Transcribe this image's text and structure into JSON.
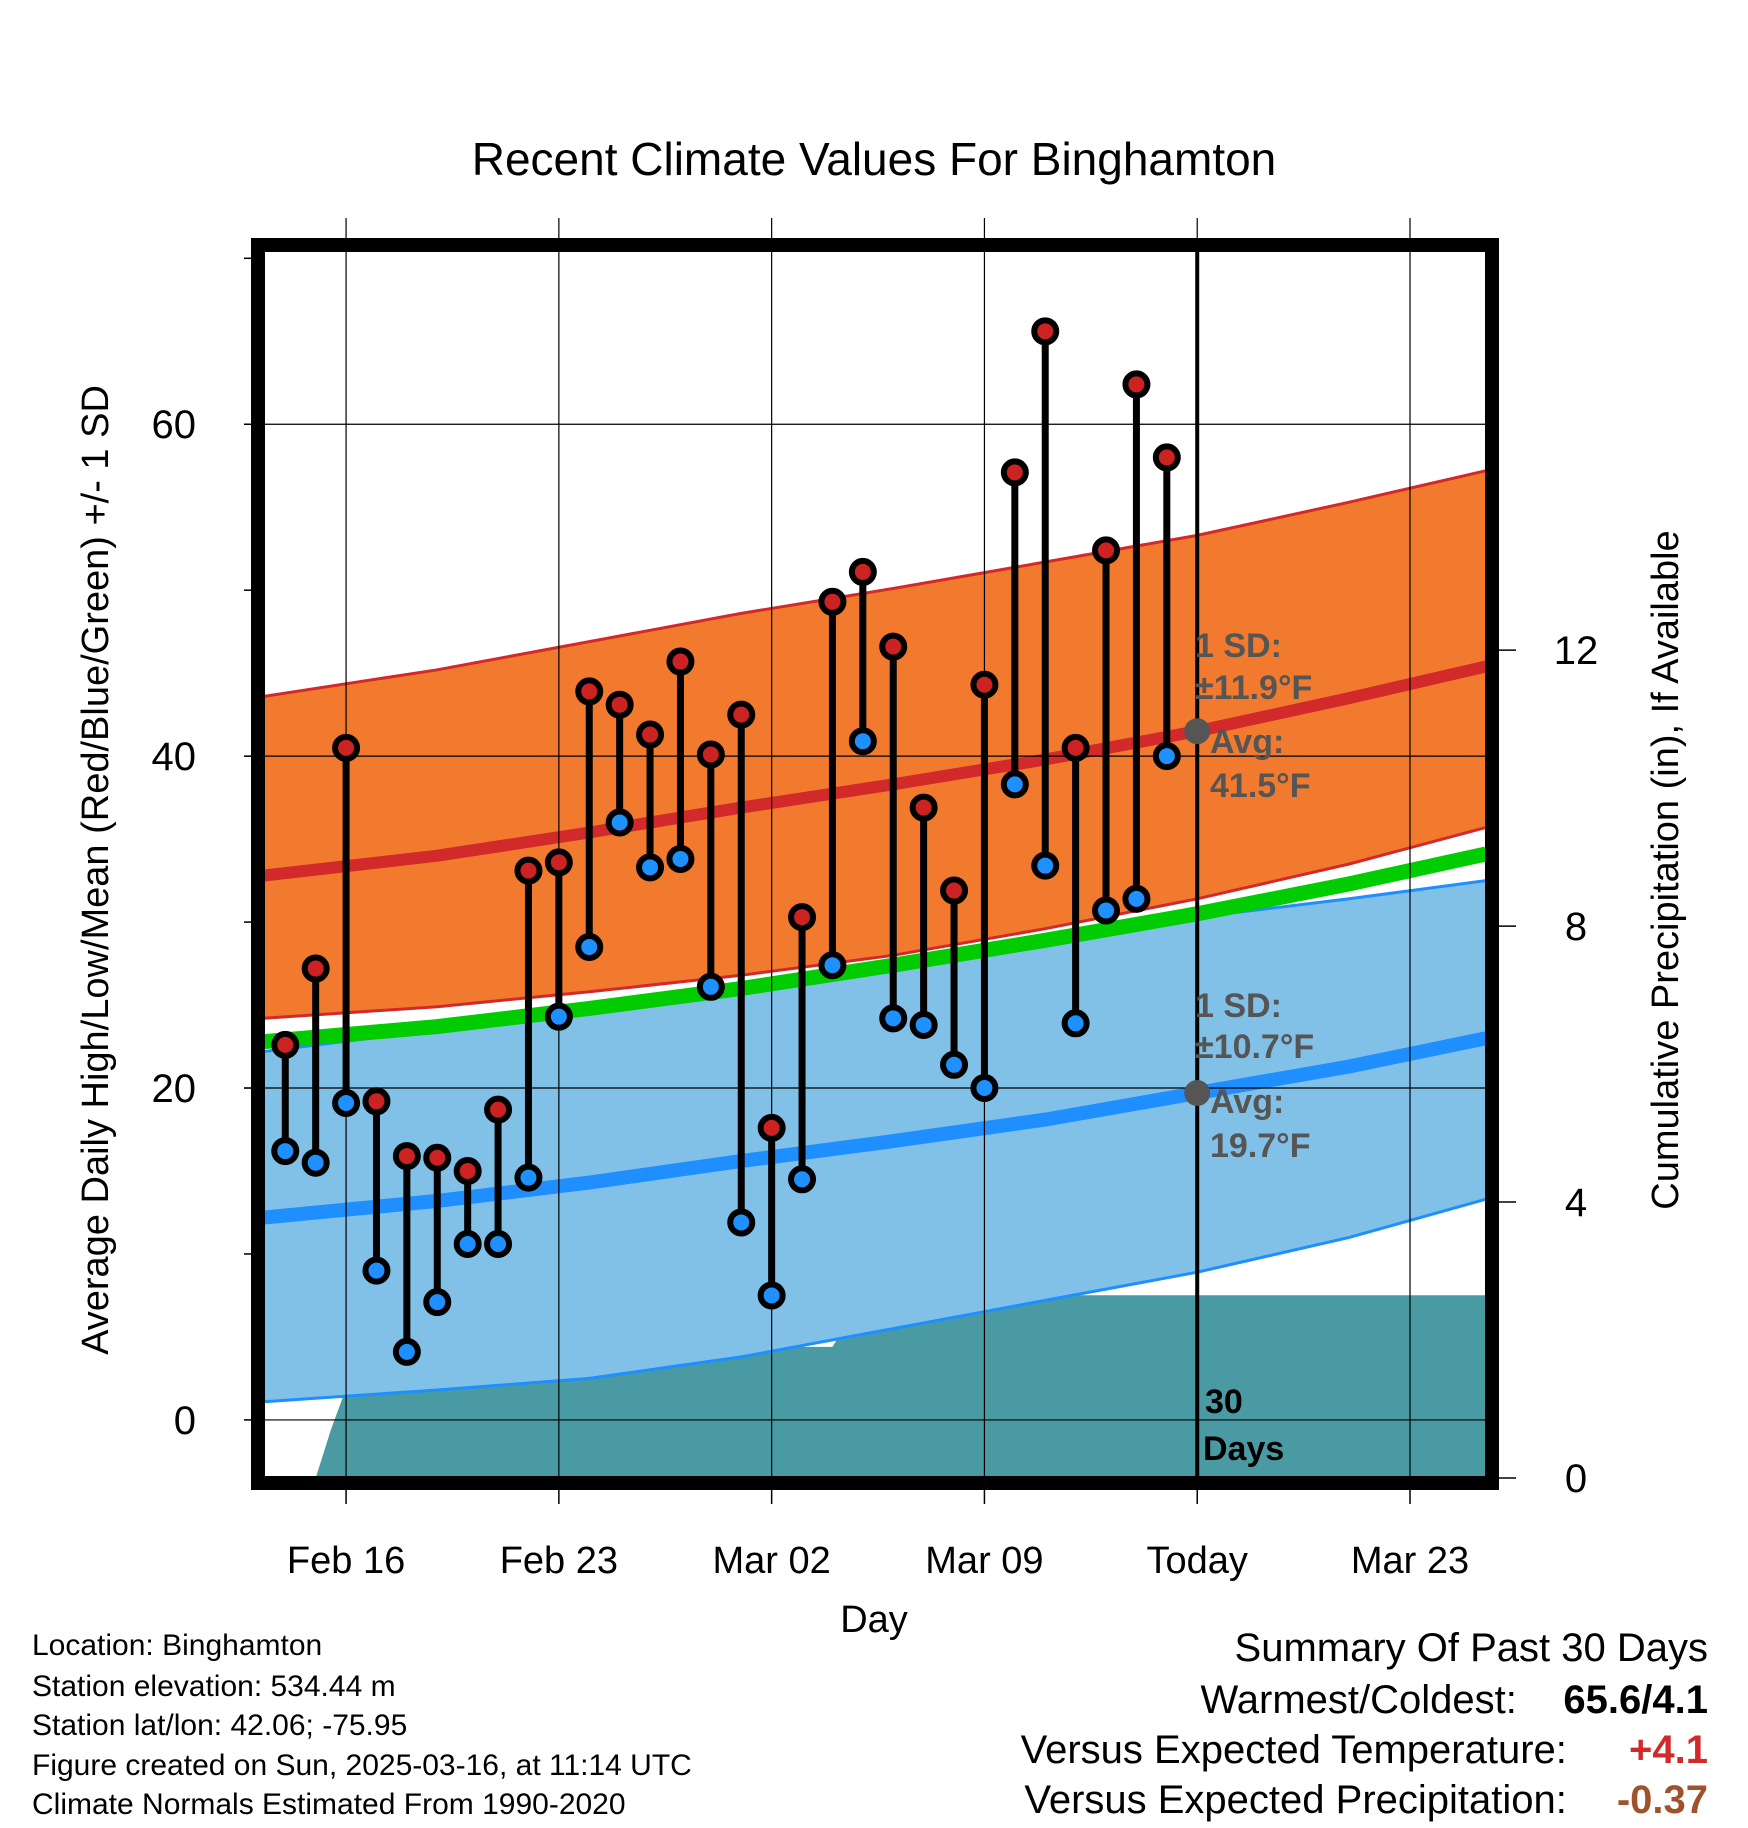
{
  "chart_data": {
    "type": "line",
    "title": "Recent Climate Values For Binghamton",
    "xlabel": "Day",
    "ylabel_left": "Average Daily High/Low/Mean (Red/Blue/Green) +/- 1 SD",
    "ylabel_right": "Cumulative Precipitation (in), If Available",
    "x_ticks": [
      {
        "day": 2,
        "label": "Feb 16"
      },
      {
        "day": 9,
        "label": "Feb 23"
      },
      {
        "day": 16,
        "label": "Mar 02"
      },
      {
        "day": 23,
        "label": "Mar 09"
      },
      {
        "day": 30,
        "label": "Today"
      },
      {
        "day": 37,
        "label": "Mar 23"
      }
    ],
    "xlim": [
      -0.7,
      39.5
    ],
    "ylim": [
      -3.5,
      70.5
    ],
    "y_ticks": [
      0,
      20,
      40,
      60
    ],
    "y_minor_ticks": [
      10,
      30,
      50,
      70
    ],
    "precip_ylim": [
      0,
      17.8
    ],
    "precip_ticks": [
      0,
      4,
      8,
      12
    ],
    "grid": true,
    "today_day": 30,
    "normals": {
      "days": [
        -0.7,
        5,
        10,
        15,
        20,
        25,
        30,
        35,
        39.5
      ],
      "high_mean": [
        32.8,
        34.0,
        35.4,
        36.9,
        38.3,
        39.8,
        41.5,
        43.5,
        45.4
      ],
      "high_upper": [
        43.6,
        45.2,
        46.9,
        48.6,
        50.1,
        51.7,
        53.3,
        55.3,
        57.2
      ],
      "high_lower": [
        24.2,
        24.9,
        25.8,
        26.8,
        28.0,
        29.6,
        31.4,
        33.5,
        35.7
      ],
      "low_mean": [
        12.2,
        13.2,
        14.3,
        15.6,
        16.8,
        18.1,
        19.7,
        21.3,
        23.0
      ],
      "low_upper": [
        22.2,
        23.5,
        24.8,
        26.0,
        27.4,
        28.9,
        30.3,
        31.4,
        32.5
      ],
      "low_lower": [
        1.1,
        1.8,
        2.5,
        3.8,
        5.5,
        7.2,
        8.9,
        11.0,
        13.3
      ],
      "mean": [
        22.8,
        23.7,
        24.8,
        26.0,
        27.4,
        28.9,
        30.5,
        32.3,
        34.1
      ]
    },
    "series": [
      {
        "name": "High",
        "color": "#cc2222",
        "days": [
          0,
          1,
          2,
          3,
          4,
          5,
          6,
          7,
          8,
          9,
          10,
          11,
          12,
          13,
          14,
          15,
          16,
          17,
          18,
          19,
          20,
          21,
          22,
          23,
          24,
          25,
          26,
          27,
          28,
          29
        ],
        "values": [
          22.6,
          27.2,
          40.5,
          19.2,
          15.9,
          15.8,
          15.0,
          18.7,
          33.1,
          33.6,
          43.9,
          43.1,
          41.3,
          45.7,
          40.1,
          42.5,
          17.6,
          30.3,
          49.3,
          51.1,
          46.6,
          36.9,
          31.9,
          44.3,
          57.1,
          65.6,
          40.5,
          52.4,
          62.4,
          58.0
        ]
      },
      {
        "name": "Low",
        "color": "#1e90ff",
        "days": [
          0,
          1,
          2,
          3,
          4,
          5,
          6,
          7,
          8,
          9,
          10,
          11,
          12,
          13,
          14,
          15,
          16,
          17,
          18,
          19,
          20,
          21,
          22,
          23,
          24,
          25,
          26,
          27,
          28,
          29
        ],
        "values": [
          16.2,
          15.5,
          19.1,
          9.0,
          4.1,
          7.1,
          10.6,
          10.6,
          14.6,
          24.3,
          28.5,
          36.0,
          33.3,
          33.8,
          26.1,
          11.9,
          7.5,
          14.5,
          27.4,
          40.9,
          24.2,
          23.8,
          21.4,
          20.0,
          38.3,
          33.4,
          23.9,
          30.7,
          31.4,
          40.0
        ]
      }
    ],
    "precip_cumulative": {
      "days": [
        0,
        0.5,
        1,
        1.5,
        2,
        3,
        4,
        5,
        6,
        7,
        8,
        9,
        10,
        11,
        12,
        13,
        14,
        15,
        16,
        17,
        18,
        19,
        20,
        21,
        22,
        23,
        24,
        25,
        26,
        27,
        28,
        29,
        30,
        39.5
      ],
      "values": [
        0,
        0,
        0,
        0.7,
        1.3,
        1.35,
        1.35,
        1.35,
        1.42,
        1.42,
        1.42,
        1.42,
        1.42,
        1.6,
        1.65,
        1.85,
        1.88,
        1.9,
        1.9,
        1.9,
        1.9,
        2.6,
        2.65,
        2.65,
        2.65,
        2.65,
        2.65,
        2.65,
        2.65,
        2.65,
        2.65,
        2.65,
        2.65,
        2.65
      ],
      "color": "#4a9aa3"
    },
    "annotations": {
      "high_sd_label": "1 SD:",
      "high_sd_value": "±11.9°F",
      "high_avg_label": "Avg:",
      "high_avg_value": "41.5°F",
      "high_avg": 41.5,
      "low_sd_label": "1 SD:",
      "low_sd_value": "±10.7°F",
      "low_avg_label": "Avg:",
      "low_avg_value": "19.7°F",
      "low_avg": 19.7,
      "days_line1": "30",
      "days_line2": "Days"
    },
    "colors": {
      "high_band": "#f27a2f",
      "low_band": "#82c1e7",
      "high_line": "#d22a2a",
      "low_line": "#1f8fff",
      "mean_line": "#00cc00",
      "annotation": "#555555"
    }
  },
  "footer": {
    "location": "Location: Binghamton",
    "elevation": "Station elevation: 534.44 m",
    "latlon": "Station lat/lon: 42.06; -75.95",
    "created": "Figure created on Sun, 2025-03-16, at 11:14 UTC",
    "normals": "Climate Normals Estimated From 1990-2020"
  },
  "summary": {
    "title": "Summary Of Past 30 Days",
    "warm_cold_label": "Warmest/Coldest:",
    "warm_cold_value": "65.6/4.1",
    "temp_label": "Versus Expected Temperature:",
    "temp_value": "+4.1",
    "temp_color": "#d22a2a",
    "precip_label": "Versus Expected Precipitation:",
    "precip_value": "-0.37",
    "precip_color": "#a0522d"
  }
}
